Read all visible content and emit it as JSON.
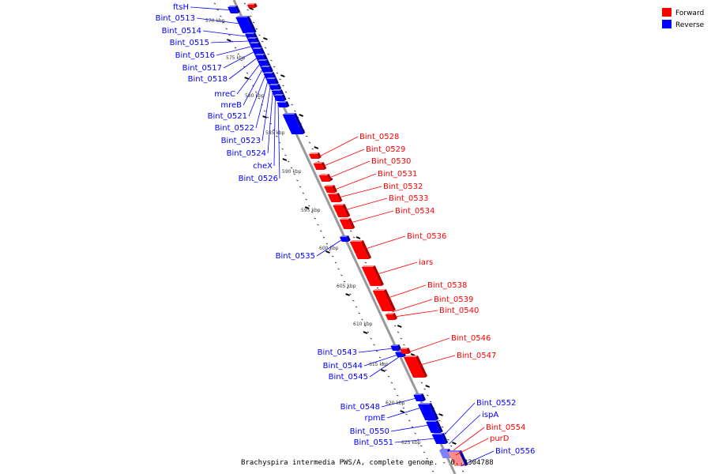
{
  "caption": "Brachyspira intermedia PWS/A, complete genome. - 0..3304788",
  "colors": {
    "forward": "#ff0000",
    "reverse": "#0000ff",
    "backbone": "#888888",
    "tick": "#000000"
  },
  "legend": [
    {
      "label": "Forward",
      "color": "#ff0000"
    },
    {
      "label": "Reverse",
      "color": "#0000ff"
    }
  ],
  "position_ticks": [
    "570 kbp",
    "575 kbp",
    "580 kbp",
    "585 kbp",
    "590 kbp",
    "595 kbp",
    "600 kbp",
    "605 kbp",
    "610 kbp",
    "615 kbp",
    "620 kbp",
    "625 kbp"
  ],
  "reverse_genes": [
    "ftsH",
    "Bint_0513",
    "Bint_0514",
    "Bint_0515",
    "Bint_0516",
    "Bint_0517",
    "Bint_0518",
    "mreC",
    "mreB",
    "Bint_0521",
    "Bint_0522",
    "Bint_0523",
    "Bint_0524",
    "cheX",
    "Bint_0526",
    "Bint_0535",
    "Bint_0543",
    "Bint_0544",
    "Bint_0545",
    "Bint_0548",
    "rpmE",
    "Bint_0550",
    "Bint_0551"
  ],
  "forward_genes": [
    "Bint_0528",
    "Bint_0529",
    "Bint_0530",
    "Bint_0531",
    "Bint_0532",
    "Bint_0533",
    "Bint_0534",
    "Bint_0536",
    "iars",
    "Bint_0538",
    "Bint_0539",
    "Bint_0540",
    "Bint_0546",
    "Bint_0547"
  ],
  "right_reverse_genes": [
    "Bint_0552",
    "ispA",
    "Bint_0556"
  ],
  "right_forward_genes": [
    "Bint_0554",
    "purD"
  ]
}
